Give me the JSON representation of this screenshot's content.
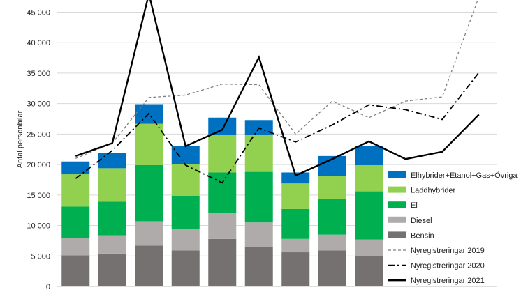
{
  "chart_data": {
    "type": "bar",
    "stacked": true,
    "title": "",
    "xlabel": "",
    "ylabel": "Antal personbilar",
    "ylim": [
      0,
      47000
    ],
    "yticks": [
      0,
      5000,
      10000,
      15000,
      20000,
      25000,
      30000,
      35000,
      40000,
      45000
    ],
    "ytick_labels": [
      "0",
      "5 000",
      "10 000",
      "15 000",
      "20 000",
      "25 000",
      "30 000",
      "35 000",
      "40 000",
      "45 000"
    ],
    "grid": true,
    "legend_position": "right",
    "categories_count": 12,
    "bar_series": [
      {
        "name": "Bensin",
        "color": "#767171",
        "values": [
          5100,
          5400,
          6700,
          5900,
          7800,
          6500,
          5600,
          5900,
          5000
        ]
      },
      {
        "name": "Diesel",
        "color": "#afabab",
        "values": [
          2800,
          3000,
          4000,
          3500,
          4300,
          4000,
          2200,
          2600,
          2700
        ]
      },
      {
        "name": "El",
        "color": "#00b050",
        "values": [
          5200,
          5500,
          9200,
          5500,
          6600,
          8300,
          4900,
          5900,
          7900
        ]
      },
      {
        "name": "Laddhybrider",
        "color": "#92d050",
        "values": [
          5300,
          5500,
          6800,
          5200,
          6200,
          6100,
          4200,
          3700,
          4300
        ]
      },
      {
        "name": "Elhybrider+Etanol+Gas+Övriga",
        "color": "#0070c0",
        "values": [
          2100,
          2500,
          3200,
          2900,
          2800,
          2400,
          1800,
          3300,
          3100
        ]
      }
    ],
    "line_series": [
      {
        "name": "Nyregistreringar 2019",
        "style": "dashed",
        "color": "#7f7f7f",
        "values": [
          21000,
          23500,
          31000,
          31400,
          33200,
          33100,
          25000,
          30400,
          27700,
          30400,
          31100,
          47500
        ]
      },
      {
        "name": "Nyregistreringar 2020",
        "style": "dashdot",
        "color": "#000000",
        "values": [
          17700,
          22300,
          28400,
          19900,
          17000,
          26000,
          23700,
          26500,
          29800,
          29000,
          27400,
          35100
        ]
      },
      {
        "name": "Nyregistreringar 2021",
        "style": "solid",
        "color": "#000000",
        "values": [
          21400,
          23500,
          48000,
          23000,
          25700,
          37600,
          18200,
          20900,
          23800,
          20900,
          22100,
          28200
        ]
      }
    ]
  }
}
